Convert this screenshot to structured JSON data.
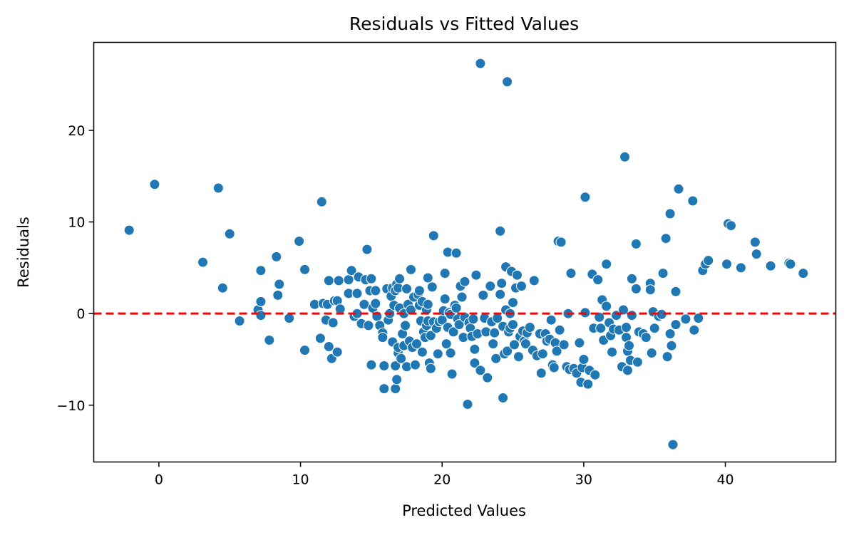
{
  "chart_data": {
    "type": "scatter",
    "title": "Residuals vs Fitted Values",
    "xlabel": "Predicted Values",
    "ylabel": "Residuals",
    "xlim": [
      -4.6,
      47.8
    ],
    "ylim": [
      -16.2,
      29.6
    ],
    "xticks": [
      0,
      10,
      20,
      30,
      40
    ],
    "yticks": [
      -10,
      0,
      10,
      20
    ],
    "xtick_labels": [
      "0",
      "10",
      "20",
      "30",
      "40"
    ],
    "ytick_labels": [
      "−10",
      "0",
      "10",
      "20"
    ],
    "grid": false,
    "reference_line": {
      "y": 0,
      "style": "dashed",
      "color": "#ff0000"
    },
    "colors": {
      "points": "#1f77b4",
      "point_edge": "#ffffff",
      "reference": "#ff0000"
    },
    "series": [
      {
        "points": [
          [
            -2.1,
            9.1
          ],
          [
            -0.3,
            14.1
          ],
          [
            3.1,
            5.6
          ],
          [
            4.2,
            13.7
          ],
          [
            4.5,
            2.8
          ],
          [
            5.0,
            8.7
          ],
          [
            5.7,
            -0.8
          ],
          [
            7.0,
            0.4
          ],
          [
            7.2,
            1.3
          ],
          [
            7.2,
            4.7
          ],
          [
            7.2,
            -0.2
          ],
          [
            7.8,
            -2.9
          ],
          [
            8.3,
            6.2
          ],
          [
            8.4,
            2.0
          ],
          [
            8.5,
            3.2
          ],
          [
            9.2,
            -0.5
          ],
          [
            9.9,
            7.9
          ],
          [
            10.3,
            -4.0
          ],
          [
            10.3,
            4.8
          ],
          [
            11.0,
            1.0
          ],
          [
            11.4,
            -2.7
          ],
          [
            11.5,
            12.2
          ],
          [
            11.6,
            1.1
          ],
          [
            11.8,
            -0.7
          ],
          [
            11.9,
            1.0
          ],
          [
            12.0,
            -3.6
          ],
          [
            12.0,
            3.6
          ],
          [
            12.2,
            -4.9
          ],
          [
            12.3,
            -1.0
          ],
          [
            12.4,
            1.4
          ],
          [
            12.6,
            -4.2
          ],
          [
            12.6,
            1.4
          ],
          [
            12.7,
            3.6
          ],
          [
            12.8,
            0.5
          ],
          [
            13.4,
            2.2
          ],
          [
            13.4,
            3.7
          ],
          [
            13.6,
            4.7
          ],
          [
            13.8,
            -0.3
          ],
          [
            14.0,
            0.0
          ],
          [
            14.0,
            2.2
          ],
          [
            14.1,
            4.0
          ],
          [
            14.3,
            -1.1
          ],
          [
            14.5,
            1.0
          ],
          [
            14.6,
            3.7
          ],
          [
            14.7,
            7.0
          ],
          [
            14.8,
            -1.3
          ],
          [
            14.9,
            2.5
          ],
          [
            15.0,
            -5.6
          ],
          [
            15.0,
            3.8
          ],
          [
            15.1,
            0.6
          ],
          [
            15.3,
            2.5
          ],
          [
            15.3,
            1.1
          ],
          [
            15.4,
            -0.3
          ],
          [
            15.6,
            -1.3
          ],
          [
            15.8,
            -2.1
          ],
          [
            15.8,
            -2.6
          ],
          [
            15.9,
            -8.2
          ],
          [
            15.9,
            -5.7
          ],
          [
            16.1,
            2.7
          ],
          [
            16.2,
            -0.7
          ],
          [
            16.3,
            0.0
          ],
          [
            16.4,
            1.9
          ],
          [
            16.5,
            2.8
          ],
          [
            16.5,
            -3.1
          ],
          [
            16.6,
            0.9
          ],
          [
            16.7,
            -5.7
          ],
          [
            16.7,
            2.5
          ],
          [
            16.7,
            -8.2
          ],
          [
            16.8,
            -7.2
          ],
          [
            16.8,
            3.2
          ],
          [
            16.9,
            2.8
          ],
          [
            16.9,
            -4.3
          ],
          [
            16.9,
            -3.7
          ],
          [
            17.0,
            0.6
          ],
          [
            17.0,
            3.8
          ],
          [
            17.1,
            -4.9
          ],
          [
            17.2,
            -2.2
          ],
          [
            17.3,
            -3.5
          ],
          [
            17.3,
            0.0
          ],
          [
            17.4,
            -1.3
          ],
          [
            17.5,
            2.7
          ],
          [
            17.5,
            -5.8
          ],
          [
            17.6,
            1.0
          ],
          [
            17.7,
            -3.0
          ],
          [
            17.8,
            4.8
          ],
          [
            17.8,
            0.4
          ],
          [
            17.9,
            -3.7
          ],
          [
            18.0,
            1.8
          ],
          [
            18.1,
            -5.6
          ],
          [
            18.2,
            -3.3
          ],
          [
            18.3,
            2.1
          ],
          [
            18.4,
            0.9
          ],
          [
            18.4,
            2.5
          ],
          [
            18.5,
            -0.8
          ],
          [
            18.6,
            1.3
          ],
          [
            18.6,
            -4.2
          ],
          [
            18.7,
            -2.0
          ],
          [
            18.8,
            -2.6
          ],
          [
            18.9,
            -1.3
          ],
          [
            18.9,
            0.4
          ],
          [
            19.0,
            -0.8
          ],
          [
            19.0,
            3.9
          ],
          [
            19.0,
            1.0
          ],
          [
            19.1,
            -5.4
          ],
          [
            19.2,
            -6.0
          ],
          [
            19.2,
            -2.4
          ],
          [
            19.3,
            2.9
          ],
          [
            19.4,
            -0.9
          ],
          [
            19.4,
            8.5
          ],
          [
            19.6,
            -1.6
          ],
          [
            19.7,
            -4.4
          ],
          [
            19.8,
            -0.9
          ],
          [
            20.0,
            -0.7
          ],
          [
            20.1,
            0.3
          ],
          [
            20.2,
            1.6
          ],
          [
            20.2,
            4.4
          ],
          [
            20.3,
            -3.3
          ],
          [
            20.4,
            6.7
          ],
          [
            20.4,
            -1.5
          ],
          [
            20.5,
            0.1
          ],
          [
            20.6,
            -4.3
          ],
          [
            20.6,
            -0.1
          ],
          [
            20.7,
            -6.6
          ],
          [
            20.8,
            -2.0
          ],
          [
            20.9,
            0.9
          ],
          [
            21.0,
            0.6
          ],
          [
            21.0,
            6.6
          ],
          [
            21.1,
            -0.6
          ],
          [
            21.2,
            -1.2
          ],
          [
            21.3,
            3.0
          ],
          [
            21.4,
            1.8
          ],
          [
            21.5,
            -2.6
          ],
          [
            21.6,
            -0.4
          ],
          [
            21.6,
            3.5
          ],
          [
            21.8,
            -9.9
          ],
          [
            21.9,
            -1.0
          ],
          [
            22.0,
            -1.6
          ],
          [
            22.1,
            -2.5
          ],
          [
            22.2,
            -0.6
          ],
          [
            22.3,
            -3.9
          ],
          [
            22.3,
            -5.4
          ],
          [
            22.4,
            4.2
          ],
          [
            22.5,
            -2.2
          ],
          [
            22.7,
            -6.2
          ],
          [
            22.7,
            27.3
          ],
          [
            22.9,
            2.0
          ],
          [
            23.0,
            -0.5
          ],
          [
            23.1,
            -2.0
          ],
          [
            23.2,
            -7.0
          ],
          [
            23.4,
            3.0
          ],
          [
            23.5,
            -0.9
          ],
          [
            23.6,
            -3.3
          ],
          [
            23.7,
            -2.1
          ],
          [
            23.8,
            -4.9
          ],
          [
            23.9,
            -0.5
          ],
          [
            24.1,
            9.0
          ],
          [
            24.1,
            2.1
          ],
          [
            24.2,
            3.3
          ],
          [
            24.3,
            -1.4
          ],
          [
            24.3,
            -9.2
          ],
          [
            24.4,
            -4.4
          ],
          [
            24.5,
            0.4
          ],
          [
            24.5,
            5.1
          ],
          [
            24.6,
            25.3
          ],
          [
            24.6,
            -4.1
          ],
          [
            24.7,
            -2.0
          ],
          [
            24.8,
            -1.6
          ],
          [
            24.8,
            0.0
          ],
          [
            24.9,
            4.6
          ],
          [
            25.0,
            -1.2
          ],
          [
            25.0,
            1.2
          ],
          [
            25.1,
            -3.4
          ],
          [
            25.2,
            2.8
          ],
          [
            25.3,
            4.2
          ],
          [
            25.4,
            -4.7
          ],
          [
            25.5,
            -2.5
          ],
          [
            25.6,
            3.0
          ],
          [
            25.7,
            -1.9
          ],
          [
            25.8,
            -3.0
          ],
          [
            25.9,
            -3.3
          ],
          [
            26.0,
            -2.1
          ],
          [
            26.2,
            -1.5
          ],
          [
            26.4,
            -4.0
          ],
          [
            26.5,
            3.6
          ],
          [
            26.7,
            -4.6
          ],
          [
            26.9,
            -2.2
          ],
          [
            27.0,
            -6.5
          ],
          [
            27.1,
            -4.4
          ],
          [
            27.3,
            -2.2
          ],
          [
            27.4,
            -3.0
          ],
          [
            27.6,
            -2.8
          ],
          [
            27.7,
            -0.7
          ],
          [
            27.8,
            -5.6
          ],
          [
            27.9,
            -5.9
          ],
          [
            28.0,
            -3.2
          ],
          [
            28.1,
            -4.1
          ],
          [
            28.2,
            7.9
          ],
          [
            28.3,
            -1.8
          ],
          [
            28.4,
            7.8
          ],
          [
            28.6,
            -3.4
          ],
          [
            28.8,
            -5.8
          ],
          [
            28.9,
            0.0
          ],
          [
            29.0,
            -6.1
          ],
          [
            29.1,
            4.4
          ],
          [
            29.3,
            -6.0
          ],
          [
            29.5,
            -6.5
          ],
          [
            29.7,
            -3.2
          ],
          [
            29.8,
            -7.5
          ],
          [
            29.9,
            -5.9
          ],
          [
            30.0,
            -5.0
          ],
          [
            30.1,
            0.1
          ],
          [
            30.1,
            12.7
          ],
          [
            30.3,
            -7.7
          ],
          [
            30.4,
            -6.2
          ],
          [
            30.6,
            4.3
          ],
          [
            30.7,
            -1.6
          ],
          [
            30.8,
            -6.7
          ],
          [
            31.0,
            3.7
          ],
          [
            31.1,
            -0.4
          ],
          [
            31.2,
            -1.6
          ],
          [
            31.3,
            1.5
          ],
          [
            31.4,
            -2.9
          ],
          [
            31.6,
            0.8
          ],
          [
            31.6,
            5.4
          ],
          [
            31.8,
            -1.0
          ],
          [
            31.9,
            -2.4
          ],
          [
            32.0,
            -4.2
          ],
          [
            32.1,
            -1.7
          ],
          [
            32.3,
            -0.2
          ],
          [
            32.5,
            -1.8
          ],
          [
            32.7,
            -5.8
          ],
          [
            32.8,
            0.4
          ],
          [
            32.9,
            17.1
          ],
          [
            33.0,
            -1.5
          ],
          [
            33.0,
            -2.6
          ],
          [
            33.1,
            -4.1
          ],
          [
            33.1,
            -6.2
          ],
          [
            33.2,
            -3.5
          ],
          [
            33.3,
            -5.1
          ],
          [
            33.4,
            3.8
          ],
          [
            33.4,
            -0.2
          ],
          [
            33.7,
            2.7
          ],
          [
            33.7,
            7.6
          ],
          [
            33.8,
            -5.3
          ],
          [
            33.9,
            -2.0
          ],
          [
            34.2,
            -2.2
          ],
          [
            34.4,
            -2.6
          ],
          [
            34.7,
            3.3
          ],
          [
            34.7,
            2.6
          ],
          [
            34.8,
            -4.3
          ],
          [
            34.9,
            0.2
          ],
          [
            35.0,
            -1.6
          ],
          [
            35.3,
            -0.3
          ],
          [
            35.5,
            -0.1
          ],
          [
            35.6,
            4.4
          ],
          [
            35.8,
            8.2
          ],
          [
            35.9,
            -4.7
          ],
          [
            36.1,
            10.9
          ],
          [
            36.1,
            -2.2
          ],
          [
            36.2,
            -3.5
          ],
          [
            36.3,
            -14.3
          ],
          [
            36.5,
            -1.2
          ],
          [
            36.5,
            2.4
          ],
          [
            36.7,
            13.6
          ],
          [
            37.2,
            -0.6
          ],
          [
            37.7,
            12.3
          ],
          [
            37.8,
            -1.8
          ],
          [
            38.1,
            -0.5
          ],
          [
            38.4,
            4.7
          ],
          [
            38.6,
            5.4
          ],
          [
            38.8,
            5.8
          ],
          [
            40.1,
            5.4
          ],
          [
            40.2,
            9.8
          ],
          [
            40.4,
            9.6
          ],
          [
            41.1,
            5.0
          ],
          [
            42.1,
            7.8
          ],
          [
            42.2,
            6.5
          ],
          [
            43.2,
            5.2
          ],
          [
            44.5,
            5.5
          ],
          [
            44.6,
            5.4
          ],
          [
            45.5,
            4.4
          ]
        ]
      }
    ]
  }
}
